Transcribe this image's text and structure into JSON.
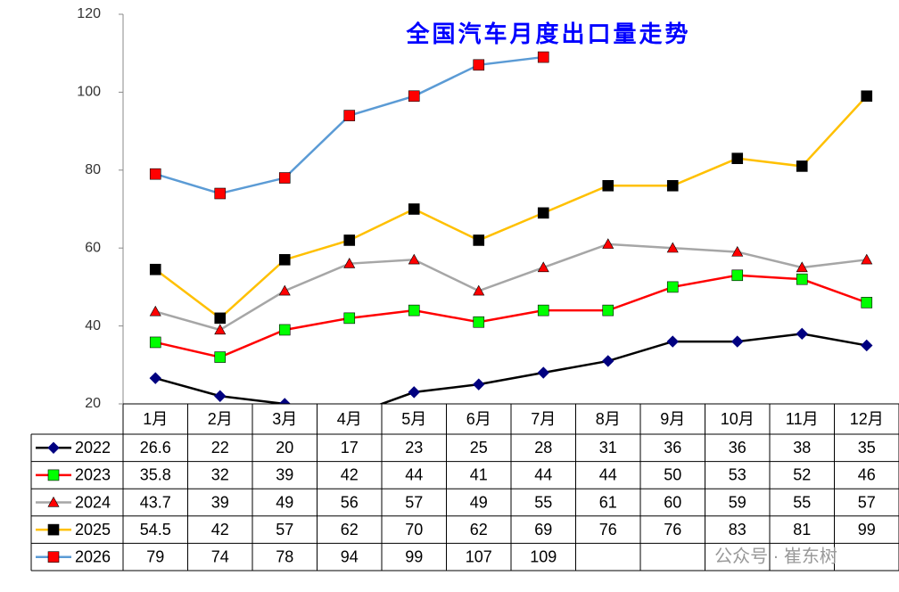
{
  "chart_data": {
    "type": "line",
    "title": "全国汽车月度出口量走势",
    "categories": [
      "1月",
      "2月",
      "3月",
      "4月",
      "5月",
      "6月",
      "7月",
      "8月",
      "9月",
      "10月",
      "11月",
      "12月"
    ],
    "series": [
      {
        "name": "2022",
        "color": "#000000",
        "marker": "diamond",
        "marker_color": "#000080",
        "values": [
          26.6,
          22,
          20,
          17,
          23,
          25,
          28,
          31,
          36,
          36,
          38,
          35
        ]
      },
      {
        "name": "2023",
        "color": "#ff0000",
        "marker": "square",
        "marker_color": "#00ff00",
        "values": [
          35.8,
          32,
          39,
          42,
          44,
          41,
          44,
          44,
          50,
          53,
          52,
          46
        ]
      },
      {
        "name": "2024",
        "color": "#a6a6a6",
        "marker": "triangle",
        "marker_color": "#ff0000",
        "values": [
          43.7,
          39,
          49,
          56,
          57,
          49,
          55,
          61,
          60,
          59,
          55,
          57
        ]
      },
      {
        "name": "2025",
        "color": "#ffc000",
        "marker": "square",
        "marker_color": "#000000",
        "values": [
          54.5,
          42,
          57,
          62,
          70,
          62,
          69,
          76,
          76,
          83,
          81,
          99
        ]
      },
      {
        "name": "2026",
        "color": "#5b9bd5",
        "marker": "square",
        "marker_color": "#ff0000",
        "values": [
          79,
          74,
          78,
          94,
          99,
          107,
          109,
          null,
          null,
          null,
          null,
          null
        ]
      }
    ],
    "ylim": [
      20,
      120
    ],
    "yticks": [
      20,
      40,
      60,
      80,
      100,
      120
    ],
    "grid": false,
    "watermark": "公众号 · 崔东树"
  }
}
